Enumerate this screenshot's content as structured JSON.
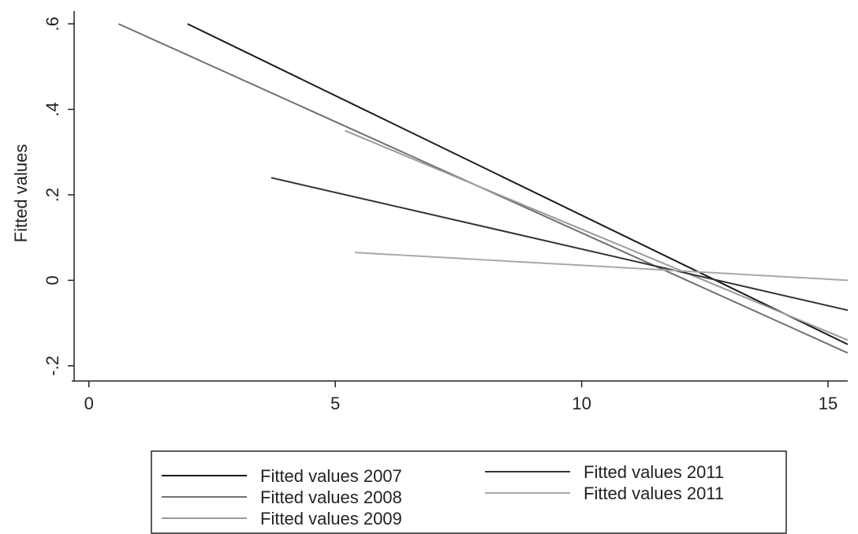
{
  "chart_data": {
    "type": "line",
    "ylabel": "Fitted values",
    "xlim": [
      -0.3,
      15.4
    ],
    "ylim": [
      -0.23,
      0.63
    ],
    "xticks": [
      0,
      5,
      10,
      15
    ],
    "yticks": [
      {
        "value": -0.2,
        "label": "-.2"
      },
      0,
      {
        "value": 0.2,
        "label": ".2"
      },
      {
        "value": 0.4,
        "label": ".4"
      },
      {
        "value": 0.6,
        "label": ".6"
      }
    ],
    "series": [
      {
        "name": "Fitted values 2007",
        "color": "#1a1a1a",
        "x": [
          2.0,
          15.4
        ],
        "values": [
          0.6,
          -0.15
        ]
      },
      {
        "name": "Fitted values 2008",
        "color": "#707070",
        "x": [
          0.6,
          15.4
        ],
        "values": [
          0.6,
          -0.17
        ]
      },
      {
        "name": "Fitted values 2009",
        "color": "#9a9a9a",
        "x": [
          5.2,
          15.4
        ],
        "values": [
          0.35,
          -0.14
        ]
      },
      {
        "name": "Fitted values 2011",
        "color": "#333333",
        "x": [
          3.7,
          15.4
        ],
        "values": [
          0.24,
          -0.07
        ]
      },
      {
        "name": "Fitted values 2011",
        "color": "#a8a8a8",
        "x": [
          5.4,
          15.4
        ],
        "values": [
          0.065,
          0.0
        ]
      }
    ]
  }
}
